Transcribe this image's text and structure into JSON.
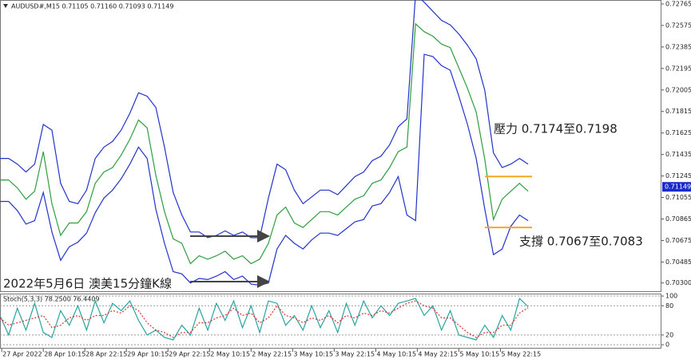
{
  "chart_data": [
    {
      "type": "line",
      "title": "AUDUSD#,M15  0.71105 0.71160 0.71093 0.71149",
      "annotations": [
        "壓力 0.7174至0.7198",
        "支撐 0.7067至0.7083",
        "2022年5月6日 澳美15分鐘K線"
      ],
      "x": [
        0,
        10,
        20,
        30,
        40,
        50,
        60,
        70,
        80,
        90,
        100,
        110,
        120,
        130,
        140,
        150,
        160,
        170,
        180,
        190,
        200,
        210,
        220,
        230,
        240,
        250,
        260,
        270,
        280,
        290,
        300,
        310,
        320,
        330,
        340,
        350,
        360,
        370,
        380,
        390,
        400,
        410,
        420,
        430,
        440,
        450,
        460,
        470,
        480,
        490,
        500,
        510,
        520,
        530,
        540,
        550,
        560,
        570,
        580,
        590,
        600,
        610
      ],
      "xlim": [
        0,
        764
      ],
      "ylim": [
        0.7022,
        0.728
      ],
      "yticks": [
        0.72765,
        0.72575,
        0.72385,
        0.72195,
        0.72005,
        0.71815,
        0.71625,
        0.71435,
        0.71245,
        0.71055,
        0.70865,
        0.70675,
        0.70485,
        {
          "value": 0.703,
          "label": "0.70300"
        }
      ],
      "current_price": 0.71149,
      "current_price_color": "#1a2bc8",
      "levels": [
        0.7124,
        0.7079
      ],
      "levels_color": "#f5a623",
      "series": [
        {
          "name": "Upper Band",
          "color": "#2233cc",
          "values": [
            0.714,
            0.714,
            0.7135,
            0.7128,
            0.7135,
            0.717,
            0.7165,
            0.7118,
            0.7102,
            0.71,
            0.7112,
            0.714,
            0.715,
            0.7155,
            0.7165,
            0.718,
            0.7198,
            0.7195,
            0.7185,
            0.715,
            0.711,
            0.709,
            0.7075,
            0.7075,
            0.707,
            0.7072,
            0.7076,
            0.7072,
            0.7075,
            0.707,
            0.707,
            0.7105,
            0.7135,
            0.713,
            0.7112,
            0.71,
            0.7106,
            0.7112,
            0.7112,
            0.7108,
            0.7116,
            0.7124,
            0.7128,
            0.7138,
            0.7142,
            0.7152,
            0.7168,
            0.7175,
            0.7285,
            0.7278,
            0.727,
            0.7262,
            0.7258,
            0.725,
            0.724,
            0.7228,
            0.72,
            0.7145,
            0.7132,
            0.7135,
            0.714,
            0.7135
          ]
        },
        {
          "name": "Lower Band",
          "color": "#2233cc",
          "values": [
            0.7102,
            0.7102,
            0.7094,
            0.7082,
            0.7085,
            0.711,
            0.7075,
            0.705,
            0.7062,
            0.7066,
            0.7074,
            0.7092,
            0.7105,
            0.7112,
            0.7122,
            0.7135,
            0.715,
            0.714,
            0.7095,
            0.7065,
            0.704,
            0.7038,
            0.703,
            0.7034,
            0.7033,
            0.7036,
            0.704,
            0.7033,
            0.7036,
            0.7029,
            0.7028,
            0.703,
            0.706,
            0.7072,
            0.7065,
            0.706,
            0.7068,
            0.7074,
            0.7074,
            0.7072,
            0.7078,
            0.7084,
            0.7086,
            0.7098,
            0.71,
            0.711,
            0.7124,
            0.709,
            0.7085,
            0.7232,
            0.723,
            0.7222,
            0.7218,
            0.7195,
            0.717,
            0.714,
            0.7095,
            0.7055,
            0.706,
            0.708,
            0.709,
            0.7085
          ]
        },
        {
          "name": "Close",
          "color": "#2e9e3e",
          "values": [
            0.7121,
            0.7121,
            0.7114,
            0.7104,
            0.7111,
            0.7146,
            0.71,
            0.7072,
            0.7083,
            0.7083,
            0.7093,
            0.7118,
            0.7128,
            0.7132,
            0.7143,
            0.7157,
            0.7174,
            0.7167,
            0.7125,
            0.7093,
            0.7069,
            0.7065,
            0.7047,
            0.7054,
            0.7051,
            0.7054,
            0.7058,
            0.7051,
            0.7054,
            0.7047,
            0.7051,
            0.7065,
            0.709,
            0.7097,
            0.7083,
            0.7079,
            0.7086,
            0.7093,
            0.7093,
            0.709,
            0.7097,
            0.7104,
            0.7107,
            0.7118,
            0.7121,
            0.7132,
            0.7146,
            0.715,
            0.7259,
            0.7252,
            0.7248,
            0.7241,
            0.7238,
            0.722,
            0.7202,
            0.7181,
            0.7139,
            0.7086,
            0.7104,
            0.7111,
            0.7118,
            0.7111
          ]
        }
      ]
    },
    {
      "type": "line",
      "title": "Stoch(5,3,3) 78.2500 76.4409",
      "x": [
        0,
        10,
        20,
        30,
        40,
        50,
        60,
        70,
        80,
        90,
        100,
        110,
        120,
        130,
        140,
        150,
        160,
        170,
        180,
        190,
        200,
        210,
        220,
        230,
        240,
        250,
        260,
        270,
        280,
        290,
        300,
        310,
        320,
        330,
        340,
        350,
        360,
        370,
        380,
        390,
        400,
        410,
        420,
        430,
        440,
        450,
        460,
        470,
        480,
        490,
        500,
        510,
        520,
        530,
        540,
        550,
        560,
        570,
        580,
        590,
        600,
        610
      ],
      "xlim": [
        0,
        764
      ],
      "xticks": [
        {
          "value": 2,
          "label": "27 Apr 2022"
        },
        {
          "value": 50,
          "label": "28 Apr 10:15"
        },
        {
          "value": 98,
          "label": "28 Apr 22:15"
        },
        {
          "value": 146,
          "label": "29 Apr 10:15"
        },
        {
          "value": 194,
          "label": "29 Apr 22:15"
        },
        {
          "value": 242,
          "label": "2 May 10:15"
        },
        {
          "value": 290,
          "label": "2 May 22:15"
        },
        {
          "value": 338,
          "label": "3 May 10:15"
        },
        {
          "value": 386,
          "label": "3 May 22:15"
        },
        {
          "value": 434,
          "label": "4 May 10:15"
        },
        {
          "value": 482,
          "label": "4 May 22:15"
        },
        {
          "value": 530,
          "label": "5 May 10:15"
        },
        {
          "value": 578,
          "label": "5 May 22:15"
        }
      ],
      "ylim": [
        -8,
        105
      ],
      "yticks": [
        100,
        80,
        20,
        0
      ],
      "series": [
        {
          "name": "Main",
          "color": "#2aa3a3",
          "style": "solid",
          "values": [
            60,
            20,
            75,
            30,
            85,
            25,
            15,
            70,
            40,
            80,
            30,
            90,
            45,
            85,
            70,
            90,
            50,
            20,
            30,
            15,
            10,
            40,
            20,
            75,
            30,
            85,
            50,
            90,
            35,
            80,
            25,
            90,
            85,
            40,
            60,
            30,
            80,
            35,
            70,
            25,
            85,
            40,
            90,
            55,
            80,
            60,
            85,
            90,
            95,
            60,
            80,
            30,
            70,
            20,
            15,
            10,
            40,
            15,
            60,
            30,
            95,
            78
          ]
        },
        {
          "name": "Signal",
          "color": "#e03030",
          "style": "dotted",
          "values": [
            55,
            40,
            45,
            50,
            55,
            60,
            35,
            40,
            55,
            60,
            50,
            60,
            60,
            70,
            65,
            80,
            70,
            45,
            30,
            25,
            15,
            25,
            25,
            45,
            45,
            55,
            60,
            75,
            60,
            65,
            45,
            55,
            80,
            60,
            55,
            45,
            55,
            50,
            60,
            45,
            60,
            55,
            65,
            60,
            70,
            65,
            75,
            85,
            90,
            80,
            75,
            55,
            55,
            40,
            25,
            15,
            25,
            25,
            40,
            40,
            65,
            76
          ]
        }
      ]
    }
  ]
}
